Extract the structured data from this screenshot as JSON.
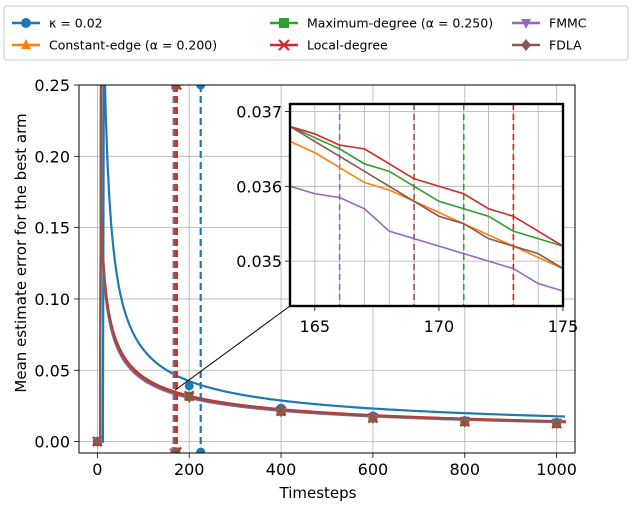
{
  "chart_data": {
    "type": "line",
    "title": "",
    "xlabel": "Timesteps",
    "ylabel": "Mean estimate error for the best arm",
    "xlim": [
      -40,
      1040
    ],
    "ylim": [
      -0.008,
      0.25
    ],
    "xticks": [
      "0",
      "200",
      "400",
      "600",
      "800",
      "1000"
    ],
    "yticks": [
      "0.00",
      "0.05",
      "0.10",
      "0.15",
      "0.20",
      "0.25"
    ],
    "grid": true,
    "legend_position": "top, above plot",
    "series": [
      {
        "name": "κ = 0.02",
        "color": "#1f77b4",
        "marker": "circle",
        "x": [
          0,
          200,
          400,
          600,
          800,
          1000
        ],
        "y": [
          0.0,
          0.039,
          0.0235,
          0.018,
          0.0148,
          0.0135
        ],
        "vline_x": 225
      },
      {
        "name": "Constant-edge (α = 0.200)",
        "color": "#ff7f0e",
        "marker": "triangle-up",
        "x": [
          0,
          200,
          400,
          600,
          800,
          1000
        ],
        "y": [
          0.0,
          0.031,
          0.021,
          0.0163,
          0.0138,
          0.0125
        ],
        "vline_x": 173
      },
      {
        "name": "Maximum-degree (α = 0.250)",
        "color": "#2ca02c",
        "marker": "square",
        "x": [
          0,
          200,
          400,
          600,
          800,
          1000
        ],
        "y": [
          0.0,
          0.0318,
          0.0212,
          0.0165,
          0.0139,
          0.0126
        ],
        "vline_x": 171
      },
      {
        "name": "Local-degree",
        "color": "#d62728",
        "marker": "x",
        "x": [
          0,
          200,
          400,
          600,
          800,
          1000
        ],
        "y": [
          0.0,
          0.0321,
          0.0214,
          0.0166,
          0.014,
          0.0127
        ],
        "vline_x": 173
      },
      {
        "name": "FMMC",
        "color": "#9467bd",
        "marker": "triangle-down",
        "x": [
          0,
          200,
          400,
          600,
          800,
          1000
        ],
        "y": [
          0.0,
          0.0305,
          0.0208,
          0.0161,
          0.0136,
          0.0124
        ],
        "vline_x": 166
      },
      {
        "name": "FDLA",
        "color": "#8c564b",
        "marker": "diamond",
        "x": [
          0,
          200,
          400,
          600,
          800,
          1000
        ],
        "y": [
          0.0,
          0.0312,
          0.021,
          0.0164,
          0.0137,
          0.0125
        ],
        "vline_x": 169
      }
    ],
    "inset": {
      "xlim": [
        164,
        175
      ],
      "ylim": [
        0.0344,
        0.0371
      ],
      "xticks": [
        "165",
        "170",
        "175"
      ],
      "yticks": [
        "0.035",
        "0.036",
        "0.037"
      ],
      "x": [
        164,
        165,
        166,
        167,
        168,
        169,
        170,
        171,
        172,
        173,
        174,
        175
      ],
      "series": [
        {
          "name": "Constant-edge (α = 0.200)",
          "y": [
            0.0366,
            0.03645,
            0.03625,
            0.03605,
            0.03595,
            0.0358,
            0.03565,
            0.0355,
            0.03535,
            0.0352,
            0.03505,
            0.0349
          ]
        },
        {
          "name": "Maximum-degree (α = 0.250)",
          "y": [
            0.0368,
            0.03665,
            0.0365,
            0.0363,
            0.0362,
            0.036,
            0.0358,
            0.0357,
            0.0356,
            0.0354,
            0.0353,
            0.0352
          ]
        },
        {
          "name": "Local-degree",
          "y": [
            0.0368,
            0.0367,
            0.03655,
            0.0365,
            0.0363,
            0.0361,
            0.036,
            0.0359,
            0.0357,
            0.0356,
            0.0354,
            0.0352
          ]
        },
        {
          "name": "FMMC",
          "y": [
            0.036,
            0.0359,
            0.03585,
            0.0357,
            0.0354,
            0.0353,
            0.0352,
            0.0351,
            0.035,
            0.0349,
            0.0347,
            0.0346
          ]
        },
        {
          "name": "FDLA",
          "y": [
            0.0368,
            0.0366,
            0.0364,
            0.0362,
            0.036,
            0.0358,
            0.0356,
            0.0355,
            0.0353,
            0.0352,
            0.0351,
            0.0349
          ]
        }
      ]
    }
  }
}
